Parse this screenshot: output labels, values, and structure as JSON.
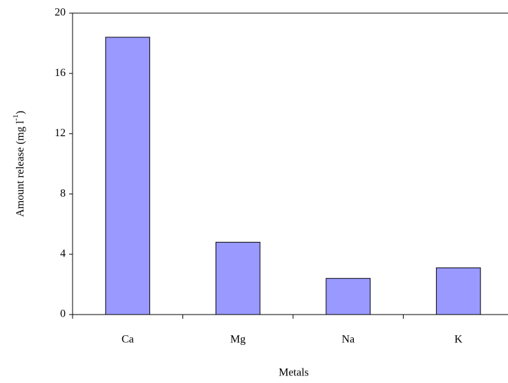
{
  "chart_data": {
    "type": "bar",
    "x_label": "Metals",
    "y_label": {
      "text": "Amount release (mg l",
      "sup": "-1",
      "end": ")"
    },
    "categories": [
      "Ca",
      "Mg",
      "Na",
      "K"
    ],
    "values": [
      18.4,
      4.8,
      2.4,
      3.1
    ],
    "color": "#9999ff",
    "ylim": [
      0,
      20
    ],
    "yticks": [
      0,
      4,
      8,
      12,
      16,
      20
    ],
    "grid": false
  }
}
